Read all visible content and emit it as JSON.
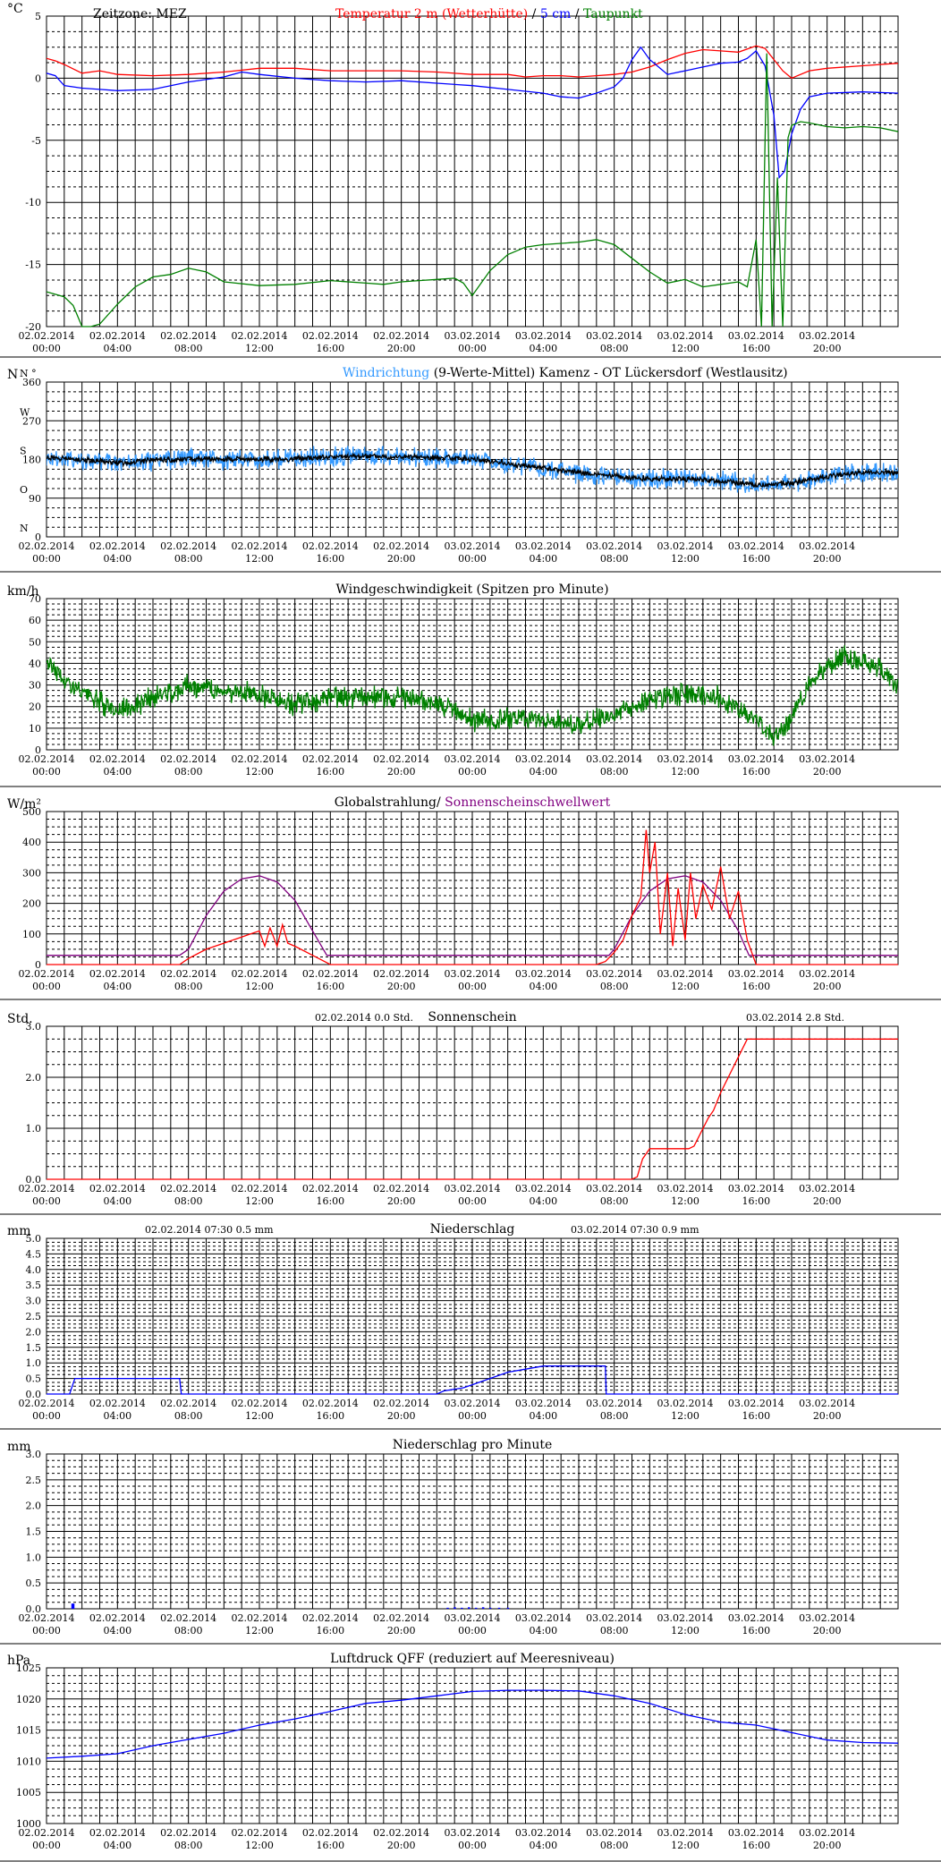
{
  "x_ticks": [
    [
      "02.02.2014",
      "00:00"
    ],
    [
      "02.02.2014",
      "04:00"
    ],
    [
      "02.02.2014",
      "08:00"
    ],
    [
      "02.02.2014",
      "12:00"
    ],
    [
      "02.02.2014",
      "16:00"
    ],
    [
      "02.02.2014",
      "20:00"
    ],
    [
      "03.02.2014",
      "00:00"
    ],
    [
      "03.02.2014",
      "04:00"
    ],
    [
      "03.02.2014",
      "08:00"
    ],
    [
      "03.02.2014",
      "12:00"
    ],
    [
      "03.02.2014",
      "16:00"
    ],
    [
      "03.02.2014",
      "20:00"
    ]
  ],
  "colors": {
    "red": "#ff0000",
    "blue": "#0000ff",
    "green": "#008000",
    "black": "#000000",
    "lightblue": "#3399ff",
    "purple": "#800080"
  },
  "chart_data": [
    {
      "id": "temp",
      "type": "line",
      "unit": "°C",
      "header_left": "Zeitzone: MEZ",
      "title_parts": [
        {
          "text": "Temperatur 2 m (Wetterhütte)",
          "color": "#ff0000"
        },
        {
          "text": "  /  ",
          "color": "#000000"
        },
        {
          "text": "5 cm",
          "color": "#0000ff"
        },
        {
          "text": " / ",
          "color": "#000000"
        },
        {
          "text": "Taupunkt",
          "color": "#008000"
        }
      ],
      "ylim": [
        -20,
        5
      ],
      "yticks": [
        5,
        0,
        -5,
        -10,
        -15,
        -20
      ],
      "ytick_labels": [
        "5",
        "0",
        "-5",
        "-10",
        "-15",
        "-20"
      ],
      "series": [
        {
          "color": "#ff0000",
          "x": [
            0,
            0.5,
            1,
            2,
            3,
            4,
            6,
            8,
            10,
            12,
            14,
            16,
            17,
            18,
            20,
            22,
            24,
            26,
            27,
            28,
            29,
            30,
            31,
            32,
            33,
            34,
            35,
            36,
            37,
            38,
            39,
            40,
            40.5,
            41,
            41.5,
            42,
            43,
            44,
            46,
            48
          ],
          "y": [
            1.6,
            1.4,
            1.1,
            0.4,
            0.6,
            0.3,
            0.2,
            0.3,
            0.5,
            0.8,
            0.8,
            0.6,
            0.6,
            0.6,
            0.6,
            0.5,
            0.3,
            0.3,
            0.1,
            0.2,
            0.2,
            0.1,
            0.2,
            0.3,
            0.5,
            0.9,
            1.5,
            2.0,
            2.3,
            2.2,
            2.1,
            2.6,
            2.4,
            1.5,
            0.6,
            0.0,
            0.6,
            0.8,
            1.0,
            1.2
          ]
        },
        {
          "color": "#0000ff",
          "x": [
            0,
            0.5,
            1,
            2,
            3,
            4,
            6,
            8,
            10,
            11,
            12,
            14,
            16,
            18,
            20,
            22,
            24,
            26,
            28,
            29,
            30,
            31,
            32,
            32.5,
            33,
            33.5,
            34,
            34.5,
            35,
            36,
            37,
            38,
            39,
            39.5,
            40,
            40.5,
            41,
            41.3,
            41.6,
            42,
            42.5,
            43,
            44,
            46,
            48
          ],
          "y": [
            0.4,
            0.2,
            -0.6,
            -0.8,
            -0.9,
            -1.0,
            -0.9,
            -0.3,
            0.1,
            0.5,
            0.3,
            0.0,
            -0.2,
            -0.3,
            -0.2,
            -0.4,
            -0.6,
            -0.9,
            -1.2,
            -1.5,
            -1.6,
            -1.2,
            -0.7,
            0.0,
            1.5,
            2.5,
            1.5,
            0.9,
            0.3,
            0.6,
            0.9,
            1.2,
            1.3,
            1.6,
            2.2,
            1.0,
            -3.0,
            -8.0,
            -7.5,
            -4.5,
            -2.5,
            -1.5,
            -1.2,
            -1.1,
            -1.2
          ]
        },
        {
          "color": "#008000",
          "x": [
            0,
            1,
            1.5,
            2,
            2.5,
            3,
            4,
            5,
            6,
            7,
            8,
            9,
            10,
            12,
            14,
            16,
            18,
            19,
            20,
            21,
            22,
            23,
            23.5,
            24,
            25,
            26,
            27,
            28,
            29,
            30,
            31,
            32,
            33,
            34,
            35,
            36,
            37,
            38,
            39,
            39.5,
            40,
            40.3,
            40.6,
            40.9,
            41.2,
            41.5,
            41.8,
            42,
            42.5,
            43,
            44,
            45,
            46,
            47,
            48
          ],
          "y": [
            -17.2,
            -17.6,
            -18.3,
            -20.0,
            -20.0,
            -19.8,
            -18.2,
            -16.8,
            -16.0,
            -15.8,
            -15.3,
            -15.6,
            -16.4,
            -16.7,
            -16.6,
            -16.3,
            -16.5,
            -16.6,
            -16.4,
            -16.3,
            -16.2,
            -16.1,
            -16.5,
            -17.5,
            -15.5,
            -14.2,
            -13.6,
            -13.4,
            -13.3,
            -13.2,
            -13.0,
            -13.4,
            -14.5,
            -15.6,
            -16.5,
            -16.2,
            -16.8,
            -16.6,
            -16.4,
            -16.8,
            -13.0,
            -20.0,
            2.0,
            -20.0,
            -8.0,
            -20.0,
            -4.8,
            -3.8,
            -3.5,
            -3.6,
            -3.9,
            -4.0,
            -3.9,
            -4.0,
            -4.3
          ]
        }
      ]
    },
    {
      "id": "winddir",
      "type": "line",
      "unit": "N",
      "title_parts": [
        {
          "text": "Windrichtung",
          "color": "#3399ff"
        },
        {
          "text": " (9-Werte-Mittel)",
          "color": "#000000"
        },
        {
          "text": "        Kamenz - OT Lückersdorf (Westlausitz)",
          "color": "#000000"
        }
      ],
      "ylim": [
        0,
        360
      ],
      "yticks": [
        360,
        270,
        180,
        90,
        0
      ],
      "ytick_labels": [
        "360",
        "270",
        "180",
        "90",
        "0"
      ],
      "dir_labels": [
        {
          "v": 360,
          "t": "N °"
        },
        {
          "v": 270,
          "t": "W"
        },
        {
          "v": 180,
          "t": "S"
        },
        {
          "v": 90,
          "t": "O"
        },
        {
          "v": 0,
          "t": "N"
        }
      ],
      "series": [
        {
          "color": "#3399ff",
          "noise": 28,
          "x": [
            0,
            2,
            4,
            6,
            8,
            10,
            12,
            14,
            16,
            18,
            20,
            22,
            24,
            26,
            28,
            30,
            32,
            34,
            36,
            38,
            40,
            42,
            44,
            46,
            48
          ],
          "y": [
            185,
            180,
            172,
            178,
            182,
            180,
            180,
            182,
            186,
            188,
            186,
            184,
            182,
            170,
            160,
            150,
            140,
            135,
            135,
            130,
            120,
            125,
            140,
            150,
            150
          ]
        },
        {
          "color": "#000000",
          "noise": 8,
          "x": [
            0,
            2,
            4,
            6,
            8,
            10,
            12,
            14,
            16,
            18,
            20,
            22,
            24,
            26,
            28,
            30,
            32,
            34,
            36,
            38,
            40,
            42,
            44,
            46,
            48
          ],
          "y": [
            185,
            180,
            172,
            178,
            182,
            180,
            180,
            182,
            186,
            188,
            186,
            184,
            182,
            170,
            160,
            150,
            140,
            135,
            135,
            130,
            120,
            125,
            140,
            150,
            150
          ]
        }
      ]
    },
    {
      "id": "windspeed",
      "type": "line",
      "unit": "km/h",
      "title_parts": [
        {
          "text": "Windgeschwindigkeit (Spitzen pro Minute)",
          "color": "#000000"
        }
      ],
      "ylim": [
        0,
        70
      ],
      "yticks": [
        70,
        60,
        50,
        40,
        30,
        20,
        10,
        0
      ],
      "ytick_labels": [
        "70",
        "60",
        "50",
        "40",
        "30",
        "20",
        "10",
        "0"
      ],
      "series": [
        {
          "color": "#008000",
          "noise": 6,
          "x": [
            0,
            1,
            2,
            4,
            6,
            8,
            10,
            12,
            14,
            16,
            18,
            20,
            22,
            24,
            26,
            28,
            30,
            32,
            34,
            36,
            38,
            40,
            41,
            42,
            43,
            44,
            45,
            46,
            47,
            48
          ],
          "y": [
            42,
            32,
            26,
            18,
            24,
            30,
            27,
            26,
            21,
            24,
            24,
            24,
            22,
            14,
            14,
            14,
            11,
            17,
            23,
            26,
            24,
            14,
            6,
            14,
            30,
            38,
            44,
            40,
            38,
            28
          ]
        }
      ]
    },
    {
      "id": "radiation",
      "type": "line",
      "unit": "W/m²",
      "title_parts": [
        {
          "text": "Globalstrahlung/ ",
          "color": "#000000"
        },
        {
          "text": "Sonnenscheinschwellwert",
          "color": "#800080"
        }
      ],
      "ylim": [
        0,
        500
      ],
      "yticks": [
        500,
        400,
        300,
        200,
        100,
        0
      ],
      "ytick_labels": [
        "500",
        "400",
        "300",
        "200",
        "100",
        "0"
      ],
      "series": [
        {
          "color": "#800080",
          "x": [
            0,
            7.5,
            8,
            9,
            10,
            11,
            12,
            13,
            14,
            15,
            15.8,
            16,
            31,
            31.7,
            32,
            33,
            34,
            35,
            36,
            37,
            38,
            39,
            39.6,
            40,
            48
          ],
          "y": [
            30,
            30,
            50,
            160,
            240,
            280,
            290,
            270,
            210,
            110,
            30,
            30,
            30,
            30,
            50,
            160,
            240,
            280,
            290,
            270,
            210,
            110,
            30,
            30,
            30
          ]
        },
        {
          "color": "#ff0000",
          "x": [
            0,
            7.5,
            8,
            9,
            10,
            11,
            11.5,
            12,
            12.3,
            12.6,
            13,
            13.3,
            13.6,
            14,
            15,
            16,
            31,
            31.5,
            32,
            32.5,
            33,
            33.5,
            33.8,
            34,
            34.3,
            34.6,
            35,
            35.3,
            35.6,
            36,
            36.3,
            36.6,
            37,
            37.5,
            38,
            38.5,
            39,
            39.5,
            40,
            48
          ],
          "y": [
            0,
            0,
            20,
            50,
            70,
            90,
            100,
            110,
            60,
            120,
            60,
            130,
            70,
            60,
            30,
            0,
            0,
            10,
            40,
            80,
            160,
            220,
            440,
            300,
            400,
            100,
            300,
            60,
            250,
            80,
            300,
            150,
            260,
            180,
            320,
            150,
            240,
            80,
            0,
            0
          ]
        }
      ]
    },
    {
      "id": "sunshine",
      "type": "line",
      "unit": "Std.",
      "title_parts": [
        {
          "text": "Sonnenschein",
          "color": "#000000"
        }
      ],
      "info_left": [
        "02.02.2014",
        "0.0",
        "Std."
      ],
      "info_right": [
        "03.02.2014",
        "2.8",
        "Std."
      ],
      "ylim": [
        0,
        3
      ],
      "yticks": [
        3,
        2,
        1,
        0
      ],
      "ytick_labels": [
        "3.0",
        "2.0",
        "1.0",
        "0.0"
      ],
      "series": [
        {
          "color": "#ff0000",
          "x": [
            0,
            33,
            33.3,
            33.6,
            34,
            36.2,
            36.5,
            37.3,
            37.6,
            38,
            39,
            39.5,
            48
          ],
          "y": [
            0,
            0,
            0.05,
            0.4,
            0.6,
            0.6,
            0.65,
            1.2,
            1.35,
            1.7,
            2.4,
            2.75,
            2.75
          ]
        }
      ]
    },
    {
      "id": "precip",
      "type": "line",
      "unit": "mm",
      "title_parts": [
        {
          "text": "Niederschlag",
          "color": "#000000"
        }
      ],
      "info_left": [
        "02.02.2014 07:30",
        "0.5",
        "mm"
      ],
      "info_right": [
        "03.02.2014 07:30",
        "0.9",
        "mm"
      ],
      "ylim": [
        0,
        5
      ],
      "yticks": [
        5,
        4.5,
        4,
        3.5,
        3,
        2.5,
        2,
        1.5,
        1,
        0.5,
        0
      ],
      "ytick_labels": [
        "5.0",
        "4.5",
        "4.0",
        "3.5",
        "3.0",
        "2.5",
        "2.0",
        "1.5",
        "1.0",
        "0.5",
        "0.0"
      ],
      "series": [
        {
          "color": "#0000ff",
          "x": [
            0,
            1.3,
            1.6,
            7.5,
            7.6,
            22,
            22.4,
            23.5,
            24,
            25,
            26,
            27,
            28,
            29,
            30,
            31,
            31.5,
            31.55,
            48
          ],
          "y": [
            0,
            0,
            0.5,
            0.5,
            0,
            0,
            0.1,
            0.2,
            0.3,
            0.5,
            0.7,
            0.8,
            0.9,
            0.9,
            0.9,
            0.9,
            0.9,
            0,
            0
          ]
        }
      ]
    },
    {
      "id": "precipmin",
      "type": "bar",
      "unit": "mm",
      "title_parts": [
        {
          "text": "Niederschlag pro Minute",
          "color": "#000000"
        }
      ],
      "ylim": [
        0,
        3
      ],
      "yticks": [
        3,
        2.5,
        2,
        1.5,
        1,
        0.5,
        0
      ],
      "ytick_labels": [
        "3.0",
        "2.5",
        "2.0",
        "1.5",
        "1.0",
        "0.5",
        "0.0"
      ],
      "bars": {
        "color": "#0000ff",
        "x": [
          1.45,
          1.5,
          22.6,
          23.0,
          23.4,
          23.8,
          24.2,
          24.6,
          25.0,
          25.5,
          26.0
        ],
        "y": [
          0.1,
          0.1,
          0.02,
          0.03,
          0.02,
          0.03,
          0.02,
          0.03,
          0.02,
          0.02,
          0.02
        ]
      }
    },
    {
      "id": "pressure",
      "type": "line",
      "unit": "hPa",
      "title_parts": [
        {
          "text": "Luftdruck QFF (reduziert auf Meeresniveau)",
          "color": "#000000"
        }
      ],
      "ylim": [
        1000,
        1025
      ],
      "yticks": [
        1025,
        1020,
        1015,
        1010,
        1005,
        1000
      ],
      "ytick_labels": [
        "1025",
        "1020",
        "1015",
        "1010",
        "1005",
        "1000"
      ],
      "series": [
        {
          "color": "#0000ff",
          "x": [
            0,
            2,
            4,
            6,
            8,
            10,
            12,
            14,
            16,
            18,
            20,
            22,
            24,
            26,
            28,
            30,
            32,
            34,
            36,
            38,
            40,
            42,
            44,
            46,
            48
          ],
          "y": [
            1010.5,
            1010.8,
            1011.2,
            1012.5,
            1013.5,
            1014.5,
            1015.8,
            1016.8,
            1018,
            1019.3,
            1019.8,
            1020.5,
            1021.2,
            1021.4,
            1021.4,
            1021.3,
            1020.5,
            1019.3,
            1017.5,
            1016.3,
            1015.8,
            1014.6,
            1013.4,
            1013.0,
            1012.9
          ]
        }
      ]
    }
  ]
}
